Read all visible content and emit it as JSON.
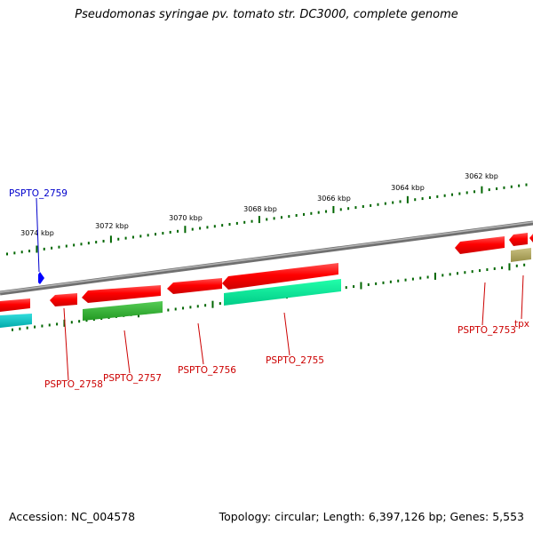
{
  "title": "Pseudomonas syringae pv. tomato str. DC3000, complete genome",
  "footer": {
    "accession": "Accession: NC_004578",
    "summary": "Topology: circular; Length: 6,397,126 bp; Genes: 5,553"
  },
  "ruler_labels": [
    "3074 kbp",
    "3072 kbp",
    "3070 kbp",
    "3068 kbp",
    "3066 kbp",
    "3064 kbp",
    "3062 kbp"
  ],
  "genes": [
    {
      "label": "PSPTO_2759",
      "strand": "+",
      "color": "#0000cc"
    },
    {
      "label": "PSPTO_2758",
      "strand": "-",
      "color": "#ff0000"
    },
    {
      "label": "PSPTO_2757",
      "strand": "-",
      "color": "#ff0000"
    },
    {
      "label": "PSPTO_2756",
      "strand": "-",
      "color": "#ff0000"
    },
    {
      "label": "PSPTO_2755",
      "strand": "-",
      "color": "#ff0000"
    },
    {
      "label": "PSPTO_2753",
      "strand": "-",
      "color": "#ff0000"
    },
    {
      "label": "tpx",
      "strand": "-",
      "color": "#ff0000"
    }
  ],
  "colors": {
    "backbone": "#808080",
    "ruler": "#006600",
    "gene_label": "#cc0000",
    "plus_label": "#0000cc",
    "cds_red": "#ff0000",
    "cds_cyan": "#00cccc",
    "cds_green": "#33bb33",
    "cds_aqua": "#00ee99",
    "cds_olive": "#b0a860"
  }
}
